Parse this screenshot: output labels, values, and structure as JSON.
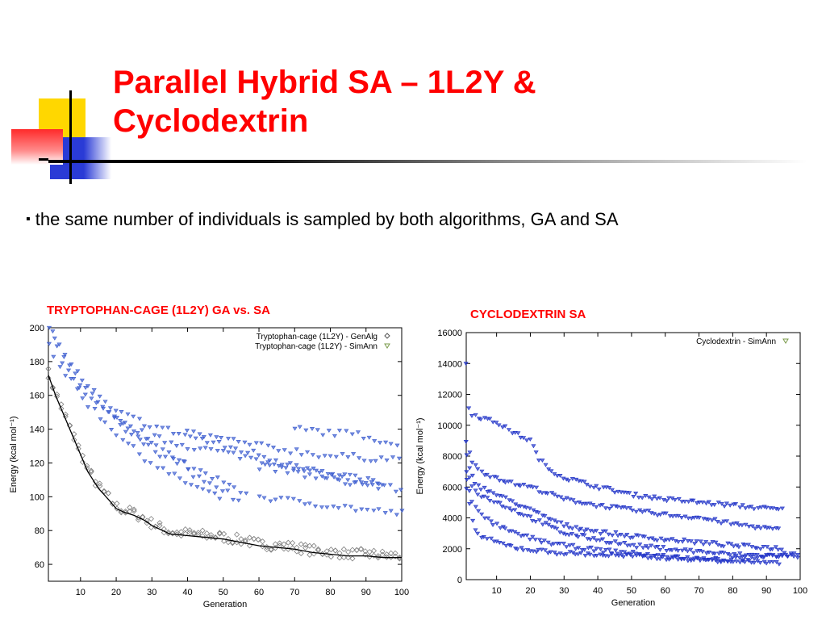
{
  "slide": {
    "title_line1": "Parallel Hybrid SA – 1L2Y &",
    "title_line2": "Cyclodextrin",
    "bullet_marker": "▪",
    "bullet": "the same number of individuals is sampled by both algorithms, GA and SA"
  },
  "colors": {
    "title": "#ff0000",
    "deco_yellow": "#ffd700",
    "deco_blue": "#2a3bd6",
    "deco_red": "#ff3b3b",
    "series_genalg": "#7f7f7f",
    "series_simann": "#3f5fd0",
    "series_cyclo": "#2234c8"
  },
  "chart_data": [
    {
      "type": "scatter",
      "title": "TRYPTOPHAN-CAGE (1L2Y) GA vs. SA",
      "xlabel": "Generation",
      "ylabel": "Energy (kcal mol⁻¹)",
      "xlim": [
        1,
        100
      ],
      "ylim": [
        50,
        200
      ],
      "xticks": [
        10,
        20,
        30,
        40,
        50,
        60,
        70,
        80,
        90,
        100
      ],
      "xtick_labels": [
        "10",
        "20",
        "30",
        "40",
        "50",
        "60",
        "70",
        "80",
        "90",
        "100"
      ],
      "yticks": [
        60,
        80,
        100,
        120,
        140,
        160,
        180,
        200
      ],
      "ytick_labels": [
        "60",
        "80",
        "100",
        "120",
        "140",
        "160",
        "180",
        "200"
      ],
      "legend_position": "top-right",
      "grid": false,
      "series": [
        {
          "name": "Tryptophan-cage (1L2Y) - GenAlg",
          "marker": "diamond",
          "x": [
            1,
            3,
            5,
            8,
            10,
            12,
            15,
            18,
            20,
            22,
            25,
            28,
            30,
            33,
            35,
            40,
            45,
            50,
            55,
            60,
            65,
            70,
            75,
            80,
            85,
            90,
            95,
            100
          ],
          "y": [
            172,
            160,
            150,
            135,
            125,
            115,
            105,
            98,
            93,
            91,
            89,
            86,
            83,
            80,
            78,
            77,
            76,
            75,
            73,
            71,
            70,
            69,
            67,
            66,
            65,
            65,
            64,
            64
          ]
        },
        {
          "name": "Tryptophan-cage (1L2Y) - SimAnn",
          "marker": "triangle-down",
          "runs": [
            {
              "x": [
                1,
                5,
                10,
                15,
                20,
                25,
                30,
                35,
                40
              ],
              "y": [
                198,
                186,
                170,
                160,
                148,
                138,
                130,
                125,
                122
              ]
            },
            {
              "x": [
                1,
                5,
                10,
                15,
                20,
                25,
                30,
                35,
                40,
                45,
                50
              ],
              "y": [
                190,
                175,
                160,
                148,
                138,
                128,
                120,
                113,
                108,
                103,
                98
              ]
            },
            {
              "x": [
                2,
                8,
                15,
                22,
                30,
                38,
                45,
                52,
                58
              ],
              "y": [
                196,
                172,
                155,
                140,
                128,
                120,
                113,
                106,
                102
              ]
            },
            {
              "x": [
                5,
                10,
                20,
                30,
                40,
                50,
                60,
                70,
                80,
                95
              ],
              "y": [
                180,
                162,
                145,
                135,
                130,
                126,
                122,
                118,
                112,
                106
              ]
            },
            {
              "x": [
                20,
                30,
                40,
                50,
                60,
                70,
                80,
                95
              ],
              "y": [
                150,
                142,
                136,
                130,
                125,
                118,
                113,
                108
              ]
            },
            {
              "x": [
                40,
                50,
                60,
                70,
                80,
                90,
                100
              ],
              "y": [
                138,
                134,
                130,
                127,
                124,
                123,
                122
              ]
            },
            {
              "x": [
                60,
                70,
                80,
                90,
                100
              ],
              "y": [
                118,
                114,
                110,
                107,
                104
              ]
            },
            {
              "x": [
                60,
                70,
                80,
                90,
                100
              ],
              "y": [
                100,
                97,
                95,
                92,
                90
              ]
            },
            {
              "x": [
                70,
                80,
                90,
                100
              ],
              "y": [
                140,
                138,
                136,
                130
              ]
            },
            {
              "x": [
                40,
                45,
                50,
                55
              ],
              "y": [
                115,
                110,
                104,
                96
              ]
            }
          ]
        }
      ]
    },
    {
      "type": "scatter",
      "title": "CYCLODEXTRIN SA",
      "xlabel": "Generation",
      "ylabel": "Energy (kcal mol⁻¹)",
      "xlim": [
        1,
        100
      ],
      "ylim": [
        0,
        16000
      ],
      "xticks": [
        10,
        20,
        30,
        40,
        50,
        60,
        70,
        80,
        90,
        100
      ],
      "xtick_labels": [
        "10",
        "20",
        "30",
        "40",
        "50",
        "60",
        "70",
        "80",
        "90",
        "100"
      ],
      "yticks": [
        0,
        2000,
        4000,
        6000,
        8000,
        10000,
        12000,
        14000,
        16000
      ],
      "ytick_labels": [
        "0",
        "2000",
        "4000",
        "6000",
        "8000",
        "10000",
        "12000",
        "14000",
        "16000"
      ],
      "legend_position": "top-right",
      "grid": false,
      "series": [
        {
          "name": "Cyclodextrin - SimAnn",
          "marker": "triangle-down",
          "runs": [
            {
              "x": [
                1,
                2,
                5,
                10,
                15,
                20,
                22,
                25,
                30,
                40,
                50,
                60,
                70,
                80,
                95
              ],
              "y": [
                14000,
                10800,
                10500,
                10200,
                9500,
                9000,
                8000,
                7200,
                6600,
                6000,
                5500,
                5200,
                5000,
                4800,
                4500
              ]
            },
            {
              "x": [
                1,
                3,
                5,
                10,
                15,
                20,
                25,
                30,
                40,
                50,
                60,
                70,
                80,
                94
              ],
              "y": [
                9000,
                7500,
                7000,
                6600,
                6200,
                6000,
                5600,
                5200,
                4800,
                4500,
                4200,
                4000,
                3600,
                3200
              ]
            },
            {
              "x": [
                1,
                3,
                5,
                10,
                15,
                20,
                25,
                30,
                40,
                50,
                60,
                70,
                80,
                95
              ],
              "y": [
                8000,
                6500,
                6000,
                5500,
                5000,
                4500,
                4000,
                3500,
                3100,
                2800,
                2600,
                2400,
                2200,
                2000
              ]
            },
            {
              "x": [
                1,
                3,
                5,
                10,
                15,
                20,
                25,
                30,
                40,
                50,
                60,
                70,
                80,
                100
              ],
              "y": [
                7000,
                6000,
                5500,
                5000,
                4500,
                4000,
                3500,
                3000,
                2600,
                2200,
                2000,
                1800,
                1600,
                1500
              ]
            },
            {
              "x": [
                1,
                3,
                5,
                10,
                15,
                20,
                25,
                30,
                40,
                50,
                60,
                70,
                80,
                94
              ],
              "y": [
                6500,
                5000,
                4200,
                3500,
                3000,
                2700,
                2400,
                2200,
                1900,
                1700,
                1500,
                1300,
                1200,
                1000
              ]
            },
            {
              "x": [
                1,
                3,
                5,
                10,
                15,
                20,
                25,
                30,
                40,
                50,
                60,
                70,
                80,
                100
              ],
              "y": [
                6000,
                3500,
                2800,
                2400,
                2100,
                1900,
                1800,
                1700,
                1600,
                1500,
                1400,
                1300,
                1300,
                1700
              ]
            }
          ]
        }
      ]
    }
  ]
}
